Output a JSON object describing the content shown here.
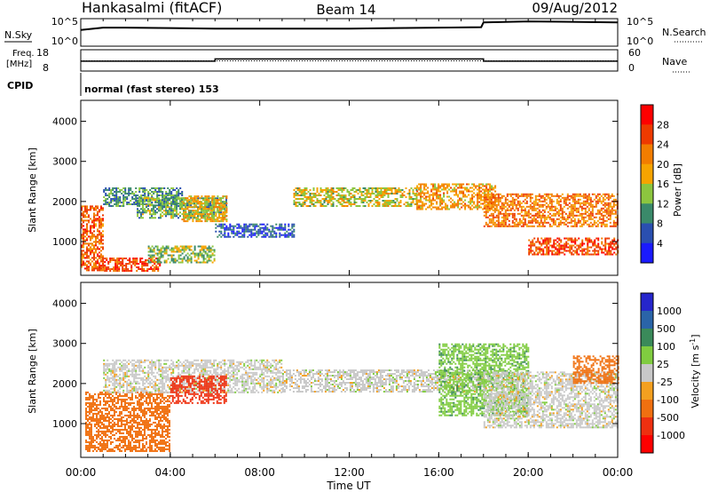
{
  "header": {
    "station": "Hankasalmi (fitACF)",
    "beam": "Beam 14",
    "date": "09/Aug/2012"
  },
  "nsky_panel": {
    "left_label": "N.Sky",
    "right_label": "N.Search",
    "left_ticks": [
      "10^5",
      "10^0"
    ],
    "right_ticks": [
      "10^5",
      "10^0"
    ]
  },
  "freq_panel": {
    "left_label_1": "Freq.",
    "left_label_2": "[MHz]",
    "right_label": "Nave",
    "left_ticks": [
      "18",
      "8"
    ],
    "right_ticks": [
      "60",
      "0"
    ]
  },
  "cpid": {
    "label": "CPID",
    "text": "normal (fast stereo) 153"
  },
  "x_axis": {
    "label": "Time UT",
    "ticks": [
      "00:00",
      "04:00",
      "08:00",
      "12:00",
      "16:00",
      "20:00",
      "00:00"
    ]
  },
  "power_panel": {
    "ylabel": "Slant Range [km]",
    "yticks": [
      "1000",
      "2000",
      "3000",
      "4000"
    ],
    "colorbar_label": "Power [dB]",
    "colorbar_ticks": [
      "4",
      "8",
      "12",
      "16",
      "20",
      "24",
      "28"
    ],
    "colorbar_colors": [
      "#1a1aff",
      "#2a4fb0",
      "#3a8a6a",
      "#8cc63f",
      "#f7a400",
      "#f27d00",
      "#ee3a00",
      "#ff0000"
    ]
  },
  "velocity_panel": {
    "ylabel": "Slant Range [km]",
    "yticks": [
      "1000",
      "2000",
      "3000",
      "4000"
    ],
    "colorbar_label": "Velocity [m s",
    "colorbar_label_sup": "-1",
    "colorbar_label_end": "]",
    "colorbar_ticks": [
      "1000",
      "500",
      "100",
      "25",
      "-25",
      "-100",
      "-500",
      "-1000"
    ],
    "colorbar_colors": [
      "#2626cc",
      "#2a64a8",
      "#3a8a5a",
      "#80cc40",
      "#c8c8c8",
      "#f3a020",
      "#f07010",
      "#ee3010",
      "#ff0000"
    ]
  },
  "chart_data": {
    "type": "heatmap",
    "x_range_hours": [
      0,
      24
    ],
    "y_range_km": [
      180,
      4500
    ],
    "n_sky_log": [
      [
        0,
        3.0
      ],
      [
        1,
        3.5
      ],
      [
        2,
        3.5
      ],
      [
        4,
        3.4
      ],
      [
        6,
        3.3
      ],
      [
        8,
        3.3
      ],
      [
        10,
        3.3
      ],
      [
        12,
        3.3
      ],
      [
        14,
        3.4
      ],
      [
        16,
        3.5
      ],
      [
        17.9,
        3.6
      ],
      [
        18.0,
        4.6
      ],
      [
        20,
        4.8
      ],
      [
        22,
        4.7
      ],
      [
        24,
        4.6
      ]
    ],
    "freq_mhz_steps": [
      [
        0,
        12.8
      ],
      [
        6.0,
        12.8
      ],
      [
        6.0,
        14.0
      ],
      [
        18.0,
        14.0
      ],
      [
        18.0,
        12.8
      ],
      [
        24,
        12.8
      ]
    ],
    "nave_level": 30,
    "power_regions_db": [
      {
        "t0": 0.0,
        "t1": 1.0,
        "r0": 300,
        "r1": 1900,
        "db": 24
      },
      {
        "t0": 0.8,
        "t1": 3.5,
        "r0": 250,
        "r1": 600,
        "db": 26
      },
      {
        "t0": 1.0,
        "t1": 4.5,
        "r0": 1900,
        "r1": 2350,
        "db": 10
      },
      {
        "t0": 2.5,
        "t1": 6.5,
        "r0": 1600,
        "r1": 2100,
        "db": 12
      },
      {
        "t0": 4.5,
        "t1": 6.5,
        "r0": 1500,
        "r1": 2150,
        "db": 18
      },
      {
        "t0": 3.0,
        "t1": 6.0,
        "r0": 500,
        "r1": 900,
        "db": 14
      },
      {
        "t0": 6.0,
        "t1": 9.5,
        "r0": 1100,
        "r1": 1450,
        "db": 6
      },
      {
        "t0": 9.5,
        "t1": 15.0,
        "r0": 1900,
        "r1": 2350,
        "db": 16
      },
      {
        "t0": 15.0,
        "t1": 18.5,
        "r0": 1800,
        "r1": 2450,
        "db": 20
      },
      {
        "t0": 18.0,
        "t1": 24.0,
        "r0": 1400,
        "r1": 2200,
        "db": 22
      },
      {
        "t0": 20.0,
        "t1": 24.0,
        "r0": 700,
        "r1": 1100,
        "db": 26
      }
    ],
    "velocity_regions_ms": [
      {
        "t0": 0.2,
        "t1": 4.0,
        "r0": 300,
        "r1": 1800,
        "v": -300
      },
      {
        "t0": 1.0,
        "t1": 9.0,
        "r0": 1800,
        "r1": 2600,
        "v": 0
      },
      {
        "t0": 4.0,
        "t1": 6.5,
        "r0": 1500,
        "r1": 2200,
        "v": -700
      },
      {
        "t0": 9.0,
        "t1": 18.0,
        "r0": 1800,
        "r1": 2350,
        "v": 0
      },
      {
        "t0": 16.0,
        "t1": 20.0,
        "r0": 1200,
        "r1": 3000,
        "v": 80
      },
      {
        "t0": 18.0,
        "t1": 24.0,
        "r0": 900,
        "r1": 2300,
        "v": 0
      },
      {
        "t0": 22.0,
        "t1": 24.0,
        "r0": 2000,
        "r1": 2700,
        "v": -150
      }
    ]
  }
}
